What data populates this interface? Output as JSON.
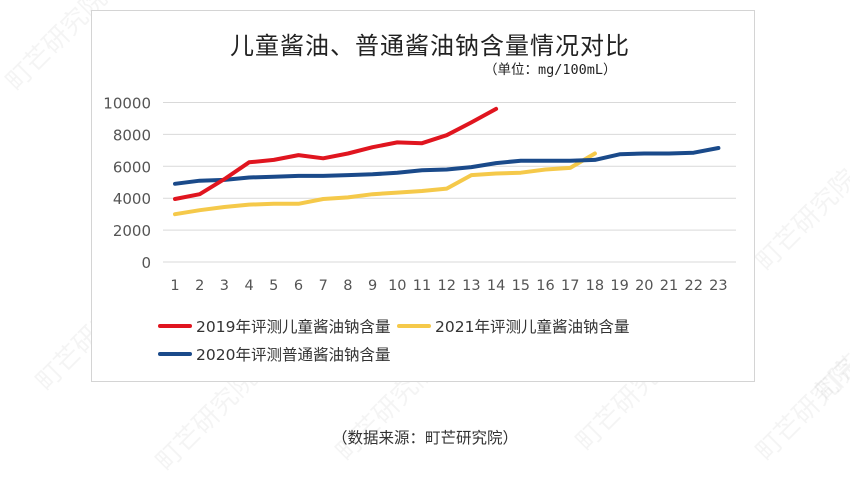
{
  "watermark": "町芒研究院",
  "source_note": "（数据来源：町芒研究院）",
  "chart_data": {
    "type": "line",
    "title": "儿童酱油、普通酱油钠含量情况对比",
    "subtitle": "（单位：mg/100mL）",
    "xlabel": "",
    "ylabel": "",
    "ylim": [
      0,
      10000
    ],
    "yticks": [
      0,
      2000,
      4000,
      6000,
      8000,
      10000
    ],
    "grid": true,
    "legend_position": "bottom",
    "x": [
      1,
      2,
      3,
      4,
      5,
      6,
      7,
      8,
      9,
      10,
      11,
      12,
      13,
      14,
      15,
      16,
      17,
      18,
      19,
      20,
      21,
      22,
      23
    ],
    "series": [
      {
        "name": "2019年评测儿童酱油钠含量",
        "color": "#e0151f",
        "values": [
          3950,
          4250,
          5200,
          6250,
          6400,
          6700,
          6500,
          6800,
          7200,
          7500,
          7450,
          7950,
          8750,
          9600
        ]
      },
      {
        "name": "2021年评测儿童酱油钠含量",
        "color": "#f5c94a",
        "values": [
          3000,
          3250,
          3450,
          3600,
          3650,
          3650,
          3950,
          4050,
          4250,
          4350,
          4450,
          4600,
          5450,
          5550,
          5600,
          5800,
          5900,
          6800
        ]
      },
      {
        "name": "2020年评测普通酱油钠含量",
        "color": "#1a4a8a",
        "values": [
          4900,
          5100,
          5150,
          5300,
          5350,
          5400,
          5400,
          5450,
          5500,
          5600,
          5750,
          5800,
          5950,
          6200,
          6350,
          6350,
          6350,
          6400,
          6750,
          6800,
          6800,
          6850,
          7150
        ]
      }
    ]
  },
  "legend": [
    {
      "label": "2019年评测儿童酱油钠含量",
      "color": "#e0151f"
    },
    {
      "label": "2021年评测儿童酱油钠含量",
      "color": "#f5c94a"
    },
    {
      "label": "2020年评测普通酱油钠含量",
      "color": "#1a4a8a"
    }
  ]
}
